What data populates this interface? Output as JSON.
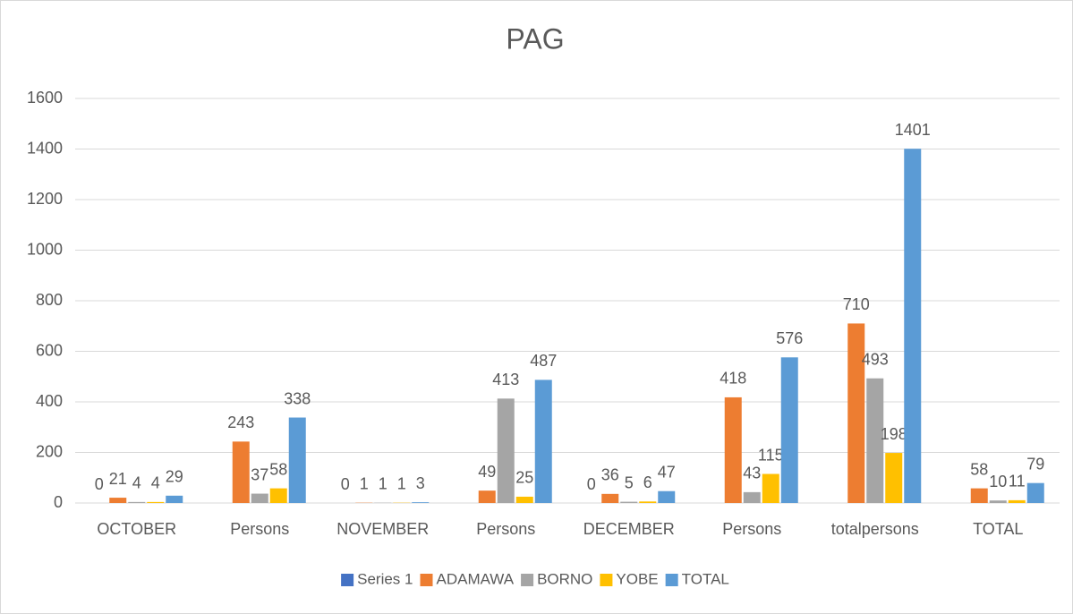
{
  "chart_data": {
    "type": "bar",
    "title": "PAG",
    "categories": [
      "OCTOBER",
      "Persons",
      "NOVEMBER",
      "Persons",
      "DECEMBER",
      "Persons",
      "totalpersons",
      "TOTAL"
    ],
    "series": [
      {
        "name": "Series 1",
        "color": "#4472c4",
        "values": [
          0,
          null,
          0,
          null,
          0,
          null,
          null,
          null
        ]
      },
      {
        "name": "ADAMAWA",
        "color": "#ed7d31",
        "values": [
          21,
          243,
          1,
          49,
          36,
          418,
          710,
          58
        ]
      },
      {
        "name": "BORNO",
        "color": "#a5a5a5",
        "values": [
          4,
          37,
          1,
          413,
          5,
          43,
          493,
          10
        ]
      },
      {
        "name": "YOBE",
        "color": "#ffc000",
        "values": [
          4,
          58,
          1,
          25,
          6,
          115,
          198,
          11
        ]
      },
      {
        "name": "TOTAL",
        "color": "#5b9bd5",
        "values": [
          29,
          338,
          3,
          487,
          47,
          576,
          1401,
          79
        ]
      }
    ],
    "ylim": [
      0,
      1600
    ],
    "yticks": [
      0,
      200,
      400,
      600,
      800,
      1000,
      1200,
      1400,
      1600
    ],
    "grid": true,
    "legend": "bottom"
  }
}
